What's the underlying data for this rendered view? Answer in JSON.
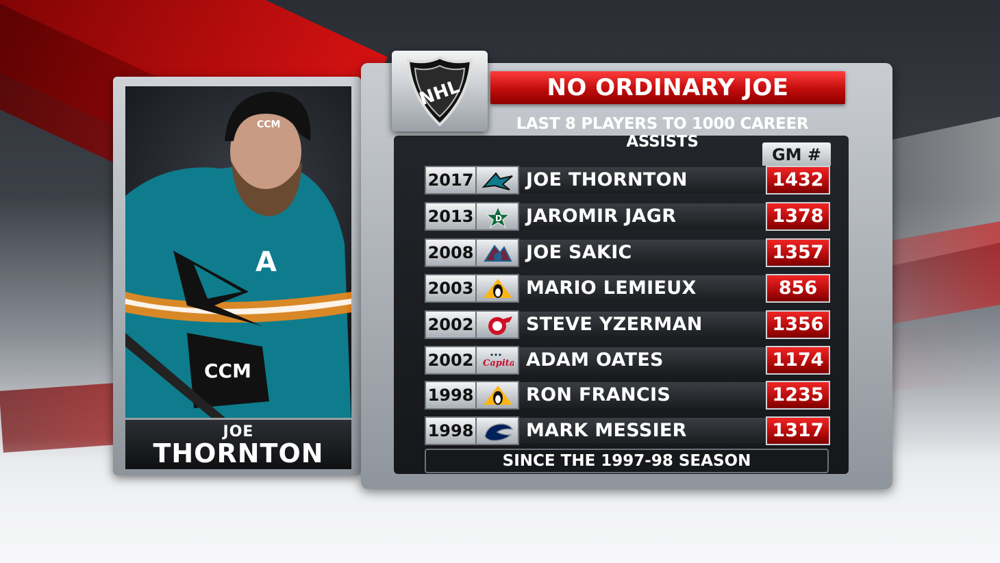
{
  "graphic": {
    "title": "NO ORDINARY JOE",
    "subtitle": "LAST 8 PLAYERS TO 1000 CAREER ASSISTS",
    "column_header": "GM #",
    "footnote": "SINCE THE 1997-98 SEASON",
    "league_logo": "nhl-shield-logo",
    "colors": {
      "accent_red": "#d61111",
      "panel_dark": "#1b1d20",
      "silver": "#b4b9be",
      "jersey_teal": "#0e7c8c"
    }
  },
  "player_card": {
    "first_name": "JOE",
    "last_name": "THORNTON",
    "photo": "player-photo-sharks"
  },
  "rows": [
    {
      "year": "2017",
      "team_logo": "sharks-logo",
      "name": "JOE THORNTON",
      "game_number": "1432"
    },
    {
      "year": "2013",
      "team_logo": "stars-logo",
      "name": "JAROMIR JAGR",
      "game_number": "1378"
    },
    {
      "year": "2008",
      "team_logo": "avalanche-logo",
      "name": "JOE SAKIC",
      "game_number": "1357"
    },
    {
      "year": "2003",
      "team_logo": "penguins-logo",
      "name": "MARIO LEMIEUX",
      "game_number": "856"
    },
    {
      "year": "2002",
      "team_logo": "red-wings-logo",
      "name": "STEVE YZERMAN",
      "game_number": "1356"
    },
    {
      "year": "2002",
      "team_logo": "capitals-logo",
      "name": "ADAM OATES",
      "game_number": "1174"
    },
    {
      "year": "1998",
      "team_logo": "penguins-logo",
      "name": "RON FRANCIS",
      "game_number": "1235"
    },
    {
      "year": "1998",
      "team_logo": "canucks-logo",
      "name": "MARK MESSIER",
      "game_number": "1317"
    }
  ]
}
